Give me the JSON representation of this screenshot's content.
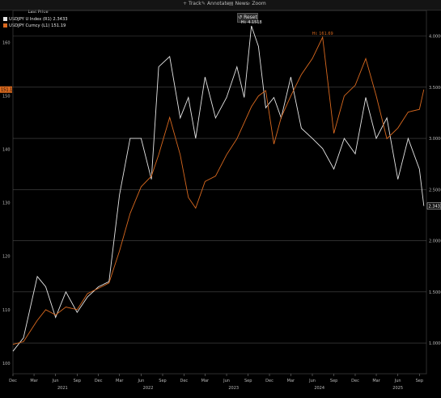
{
  "toolbar": {
    "track": "Track",
    "annotate": "Annotate",
    "news": "News",
    "zoom": "Zoom",
    "reset": "Reset"
  },
  "legend": {
    "header": "Last Price",
    "series_1": "USDJPY U Index  (R1)  2.3433",
    "series_2": "USDJPY Curncy  (L1)  151.19"
  },
  "annotations": {
    "hi_index": "Hi: 4.1518",
    "hi_curncy": "Hi: 161.69",
    "last_index": "2.3433",
    "last_curncy": "151.19"
  },
  "colors": {
    "index": "#e6e6e6",
    "curncy": "#d9691f",
    "grid": "#4a4a4a",
    "axis_text": "#bbbbbb"
  },
  "chart_data": {
    "type": "line",
    "title": "",
    "x_tick_labels": [
      "Dec",
      "Mar",
      "Jun",
      "Sep",
      "Dec",
      "Mar",
      "Jun",
      "Sep",
      "Dec",
      "Mar",
      "Jun",
      "Sep",
      "Dec",
      "Mar",
      "Jun",
      "Sep",
      "Dec",
      "Mar",
      "Jun",
      "Sep"
    ],
    "year_labels": [
      "2021",
      "2022",
      "2023",
      "2024",
      "2025"
    ],
    "left_axis": {
      "label": "",
      "ylim": [
        98,
        166
      ],
      "ticks": [
        100,
        110,
        120,
        130,
        140,
        150,
        160
      ]
    },
    "right_axis": {
      "label": "",
      "ylim": [
        0.7,
        4.25
      ],
      "ticks": [
        "1.0000",
        "1.5000",
        "2.0000",
        "2.5000",
        "3.0000",
        "3.5000",
        "4.0000"
      ]
    },
    "grid": true,
    "legend_position": "top-left",
    "x_range": [
      "2020-12-01",
      "2025-10-01"
    ],
    "series": [
      {
        "name": "USDJPY U Index",
        "axis": "right",
        "color": "#e6e6e6",
        "x": [
          "2020-12-01",
          "2021-01-15",
          "2021-03-15",
          "2021-04-20",
          "2021-06-01",
          "2021-07-15",
          "2021-09-01",
          "2021-10-15",
          "2021-12-01",
          "2022-01-15",
          "2022-03-01",
          "2022-04-15",
          "2022-06-01",
          "2022-07-15",
          "2022-08-15",
          "2022-10-01",
          "2022-11-15",
          "2022-12-20",
          "2023-01-20",
          "2023-03-01",
          "2023-04-15",
          "2023-06-01",
          "2023-07-15",
          "2023-08-15",
          "2023-09-15",
          "2023-10-15",
          "2023-11-15",
          "2023-12-20",
          "2024-01-20",
          "2024-03-01",
          "2024-04-15",
          "2024-06-01",
          "2024-07-15",
          "2024-09-01",
          "2024-10-15",
          "2024-12-01",
          "2025-01-15",
          "2025-03-01",
          "2025-04-15",
          "2025-06-01",
          "2025-07-15",
          "2025-09-01",
          "2025-09-20"
        ],
        "values": [
          0.92,
          1.05,
          1.65,
          1.55,
          1.25,
          1.5,
          1.3,
          1.45,
          1.55,
          1.6,
          2.45,
          3.0,
          3.0,
          2.6,
          3.7,
          3.8,
          3.2,
          3.4,
          3.0,
          3.6,
          3.2,
          3.4,
          3.7,
          3.4,
          4.1,
          3.9,
          3.3,
          3.4,
          3.2,
          3.6,
          3.1,
          3.0,
          2.9,
          2.7,
          3.0,
          2.85,
          3.4,
          3.0,
          3.2,
          2.6,
          3.0,
          2.7,
          2.34
        ]
      },
      {
        "name": "USDJPY Curncy",
        "axis": "left",
        "color": "#d9691f",
        "x": [
          "2020-12-01",
          "2021-01-15",
          "2021-03-15",
          "2021-04-20",
          "2021-06-01",
          "2021-07-15",
          "2021-09-01",
          "2021-10-15",
          "2021-12-01",
          "2022-01-15",
          "2022-03-01",
          "2022-04-15",
          "2022-06-01",
          "2022-07-15",
          "2022-08-15",
          "2022-10-01",
          "2022-11-15",
          "2022-12-20",
          "2023-01-20",
          "2023-03-01",
          "2023-04-15",
          "2023-06-01",
          "2023-07-15",
          "2023-08-15",
          "2023-09-15",
          "2023-10-15",
          "2023-11-15",
          "2023-12-20",
          "2024-01-20",
          "2024-03-01",
          "2024-04-15",
          "2024-06-01",
          "2024-07-15",
          "2024-09-01",
          "2024-10-15",
          "2024-12-01",
          "2025-01-15",
          "2025-03-01",
          "2025-04-15",
          "2025-06-01",
          "2025-07-15",
          "2025-09-01",
          "2025-09-20"
        ],
        "values": [
          103.5,
          104.0,
          108.0,
          110.0,
          109.0,
          110.5,
          110.0,
          113.0,
          114.0,
          115.0,
          121.0,
          128.0,
          133.0,
          135.0,
          139.0,
          146.0,
          139.0,
          131.0,
          129.0,
          134.0,
          135.0,
          139.0,
          142.0,
          145.0,
          148.0,
          150.0,
          151.0,
          141.0,
          146.0,
          150.0,
          154.0,
          157.0,
          161.0,
          143.0,
          150.0,
          152.0,
          157.0,
          150.0,
          142.0,
          144.0,
          147.0,
          147.5,
          151.2
        ]
      }
    ]
  }
}
